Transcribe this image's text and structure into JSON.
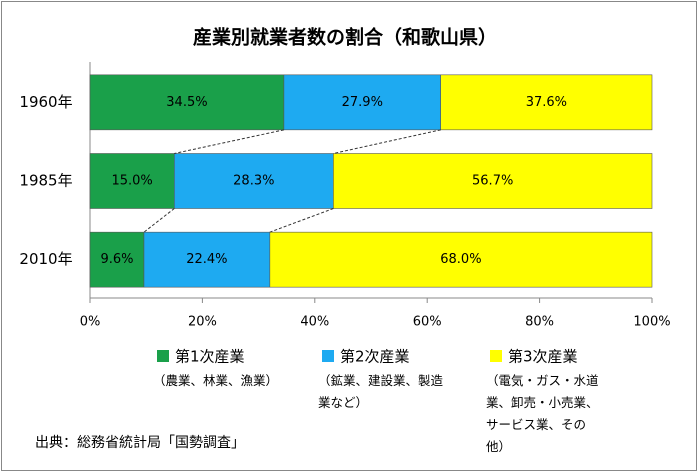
{
  "chart_data": {
    "type": "stacked_bar_horizontal",
    "title": "産業別就業者数の割合（和歌山県）",
    "categories": [
      "1960年",
      "1985年",
      "2010年"
    ],
    "series": [
      {
        "name": "第1次産業",
        "description": "（農業、林業、漁業）",
        "color": "#1aa04a",
        "values": [
          34.5,
          15.0,
          9.6
        ],
        "value_labels": [
          "34.5%",
          "15.0%",
          "9.6%"
        ]
      },
      {
        "name": "第2次産業",
        "description": "（鉱業、建設業、製造業など）",
        "color": "#1eaaf1",
        "values": [
          27.9,
          28.3,
          22.4
        ],
        "value_labels": [
          "27.9%",
          "28.3%",
          "22.4%"
        ]
      },
      {
        "name": "第3次産業",
        "description": "（電気・ガス・水道業、卸売・小売業、サービス業、その他）",
        "color": "#ffff00",
        "values": [
          37.6,
          56.7,
          68.0
        ],
        "value_labels": [
          "37.6%",
          "56.7%",
          "68.0%"
        ]
      }
    ],
    "xlim": [
      0,
      100
    ],
    "xticks": [
      {
        "value": 0,
        "label": "0%"
      },
      {
        "value": 20,
        "label": "20%"
      },
      {
        "value": 40,
        "label": "40%"
      },
      {
        "value": 60,
        "label": "60%"
      },
      {
        "value": 80,
        "label": "80%"
      },
      {
        "value": 100,
        "label": "100%"
      }
    ],
    "source": "出典：総務省統計局「国勢調査」"
  }
}
